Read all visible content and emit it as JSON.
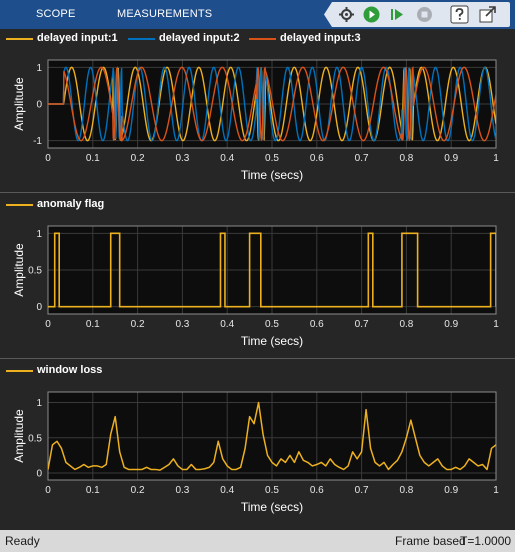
{
  "toolbar": {
    "tabs": [
      "SCOPE",
      "MEASUREMENTS"
    ],
    "controls": [
      "simulink-settings-icon",
      "run-icon",
      "step-forward-icon",
      "stop-icon",
      "help-icon",
      "undock-icon"
    ]
  },
  "colors": {
    "yellow": "#edb120",
    "blue": "#0072bd",
    "orange": "#d95319",
    "plot_bg": "#0d0d0d",
    "grid": "#3a3a3a"
  },
  "panels": [
    {
      "legend": [
        {
          "label": "delayed input:1",
          "color": "#edb120"
        },
        {
          "label": "delayed input:2",
          "color": "#0072bd"
        },
        {
          "label": "delayed input:3",
          "color": "#d95319"
        }
      ],
      "ylabel": "Amplitude",
      "xlabel": "Time (secs)",
      "yticks": [
        "1",
        "0",
        "-1"
      ]
    },
    {
      "legend": [
        {
          "label": "anomaly flag",
          "color": "#edb120"
        }
      ],
      "ylabel": "Amplitude",
      "xlabel": "Time (secs)",
      "yticks": [
        "1",
        "0.5",
        "0"
      ]
    },
    {
      "legend": [
        {
          "label": "window loss",
          "color": "#edb120"
        }
      ],
      "ylabel": "Amplitude",
      "xlabel": "Time (secs)",
      "yticks": [
        "1",
        "0.5",
        "0"
      ]
    }
  ],
  "xticks": [
    "0",
    "0.1",
    "0.2",
    "0.3",
    "0.4",
    "0.5",
    "0.6",
    "0.7",
    "0.8",
    "0.9",
    "1"
  ],
  "chart_data": [
    {
      "type": "line",
      "xlim": [
        0,
        1
      ],
      "ylim": [
        -1.2,
        1.2
      ],
      "series": [
        {
          "name": "delayed input:1",
          "signal": "sine",
          "amplitude": 1,
          "period": 0.071,
          "start": 0.035
        },
        {
          "name": "delayed input:2",
          "signal": "sine",
          "amplitude": 1,
          "period": 0.055,
          "start": 0.035
        },
        {
          "name": "delayed input:3",
          "signal": "sine",
          "amplitude": 1,
          "period": 0.09,
          "start": 0.035
        }
      ],
      "bursts": [
        [
          0.145,
          0.165
        ],
        [
          0.465,
          0.485
        ],
        [
          0.79,
          0.815
        ]
      ]
    },
    {
      "type": "line",
      "xlim": [
        0,
        1
      ],
      "ylim": [
        -0.1,
        1.1
      ],
      "series": [
        {
          "name": "anomaly flag",
          "high_intervals": [
            [
              0.015,
              0.025
            ],
            [
              0.14,
              0.16
            ],
            [
              0.385,
              0.395
            ],
            [
              0.45,
              0.475
            ],
            [
              0.715,
              0.725
            ],
            [
              0.79,
              0.825
            ],
            [
              0.988,
              1.0
            ]
          ]
        }
      ]
    },
    {
      "type": "line",
      "xlim": [
        0,
        1
      ],
      "ylim": [
        -0.1,
        1.15
      ],
      "series": [
        {
          "name": "window loss",
          "x": [
            0,
            0.01,
            0.02,
            0.03,
            0.04,
            0.05,
            0.06,
            0.07,
            0.08,
            0.09,
            0.1,
            0.11,
            0.12,
            0.13,
            0.14,
            0.15,
            0.16,
            0.17,
            0.18,
            0.19,
            0.2,
            0.21,
            0.22,
            0.23,
            0.24,
            0.25,
            0.26,
            0.27,
            0.28,
            0.29,
            0.3,
            0.31,
            0.32,
            0.33,
            0.34,
            0.35,
            0.36,
            0.37,
            0.38,
            0.39,
            0.4,
            0.41,
            0.42,
            0.43,
            0.44,
            0.45,
            0.46,
            0.47,
            0.48,
            0.49,
            0.5,
            0.51,
            0.52,
            0.53,
            0.54,
            0.55,
            0.56,
            0.57,
            0.58,
            0.59,
            0.6,
            0.61,
            0.62,
            0.63,
            0.64,
            0.65,
            0.66,
            0.67,
            0.68,
            0.69,
            0.7,
            0.71,
            0.72,
            0.73,
            0.74,
            0.75,
            0.76,
            0.77,
            0.78,
            0.79,
            0.8,
            0.81,
            0.82,
            0.83,
            0.84,
            0.85,
            0.86,
            0.87,
            0.88,
            0.89,
            0.9,
            0.91,
            0.92,
            0.93,
            0.94,
            0.95,
            0.96,
            0.97,
            0.98,
            0.99,
            1.0
          ],
          "y": [
            0.05,
            0.4,
            0.45,
            0.35,
            0.15,
            0.1,
            0.05,
            0.08,
            0.12,
            0.08,
            0.1,
            0.1,
            0.08,
            0.12,
            0.55,
            0.8,
            0.3,
            0.08,
            0.05,
            0.05,
            0.05,
            0.05,
            0.08,
            0.05,
            0.05,
            0.04,
            0.08,
            0.12,
            0.2,
            0.1,
            0.05,
            0.05,
            0.12,
            0.05,
            0.05,
            0.06,
            0.08,
            0.15,
            0.45,
            0.2,
            0.1,
            0.05,
            0.05,
            0.08,
            0.35,
            0.8,
            0.7,
            1.0,
            0.55,
            0.25,
            0.15,
            0.1,
            0.2,
            0.15,
            0.25,
            0.15,
            0.3,
            0.18,
            0.15,
            0.1,
            0.12,
            0.15,
            0.1,
            0.2,
            0.12,
            0.08,
            0.05,
            0.1,
            0.3,
            0.2,
            0.3,
            0.9,
            0.35,
            0.15,
            0.1,
            0.15,
            0.05,
            0.12,
            0.18,
            0.3,
            0.5,
            0.75,
            0.5,
            0.25,
            0.15,
            0.1,
            0.15,
            0.2,
            0.1,
            0.05,
            0.05,
            0.08,
            0.05,
            0.1,
            0.2,
            0.15,
            0.1,
            0.12,
            0.05,
            0.35,
            0.4
          ]
        }
      ]
    }
  ],
  "status": {
    "ready": "Ready",
    "mode": "Frame based",
    "time": "T=1.0000"
  }
}
